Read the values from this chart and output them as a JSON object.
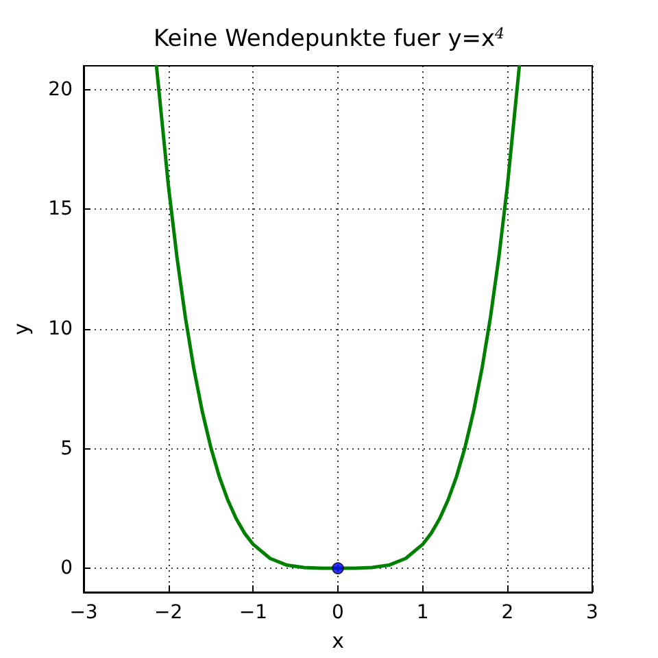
{
  "chart_data": {
    "type": "line",
    "title": "Keine Wendepunkte fuer y=x$^{4}$",
    "xlabel": "x",
    "ylabel": "y",
    "series": [
      {
        "type": "line",
        "color": "#008000",
        "marker": "none",
        "line_style": "solid",
        "x": [
          -2.14,
          -2.0,
          -1.9,
          -1.8,
          -1.7,
          -1.6,
          -1.5,
          -1.4,
          -1.3,
          -1.2,
          -1.1,
          -1.0,
          -0.8,
          -0.6,
          -0.4,
          -0.2,
          0,
          0.2,
          0.4,
          0.6,
          0.8,
          1.0,
          1.1,
          1.2,
          1.3,
          1.4,
          1.5,
          1.6,
          1.7,
          1.8,
          1.9,
          2.0,
          2.14
        ],
        "values": [
          20.97,
          16,
          13.03,
          10.5,
          8.35,
          6.55,
          5.06,
          3.84,
          2.86,
          2.07,
          1.46,
          1,
          0.41,
          0.13,
          0.03,
          0,
          0,
          0,
          0.03,
          0.13,
          0.41,
          1,
          1.46,
          2.07,
          2.86,
          3.84,
          5.06,
          6.55,
          8.35,
          10.5,
          13.03,
          16,
          20.97
        ]
      },
      {
        "type": "scatter",
        "color": "#0000ff",
        "marker": "circle",
        "x": [
          0
        ],
        "values": [
          0
        ]
      }
    ],
    "xlim": [
      -3,
      3
    ],
    "xticks": [
      {
        "value": -3,
        "label": "−3"
      },
      {
        "value": -2,
        "label": "−2"
      },
      {
        "value": -1,
        "label": "−1"
      },
      0,
      1,
      2,
      3
    ],
    "ylim": [
      -1,
      21
    ],
    "yticks": [
      0,
      5,
      10,
      15,
      20
    ],
    "grid": true
  }
}
